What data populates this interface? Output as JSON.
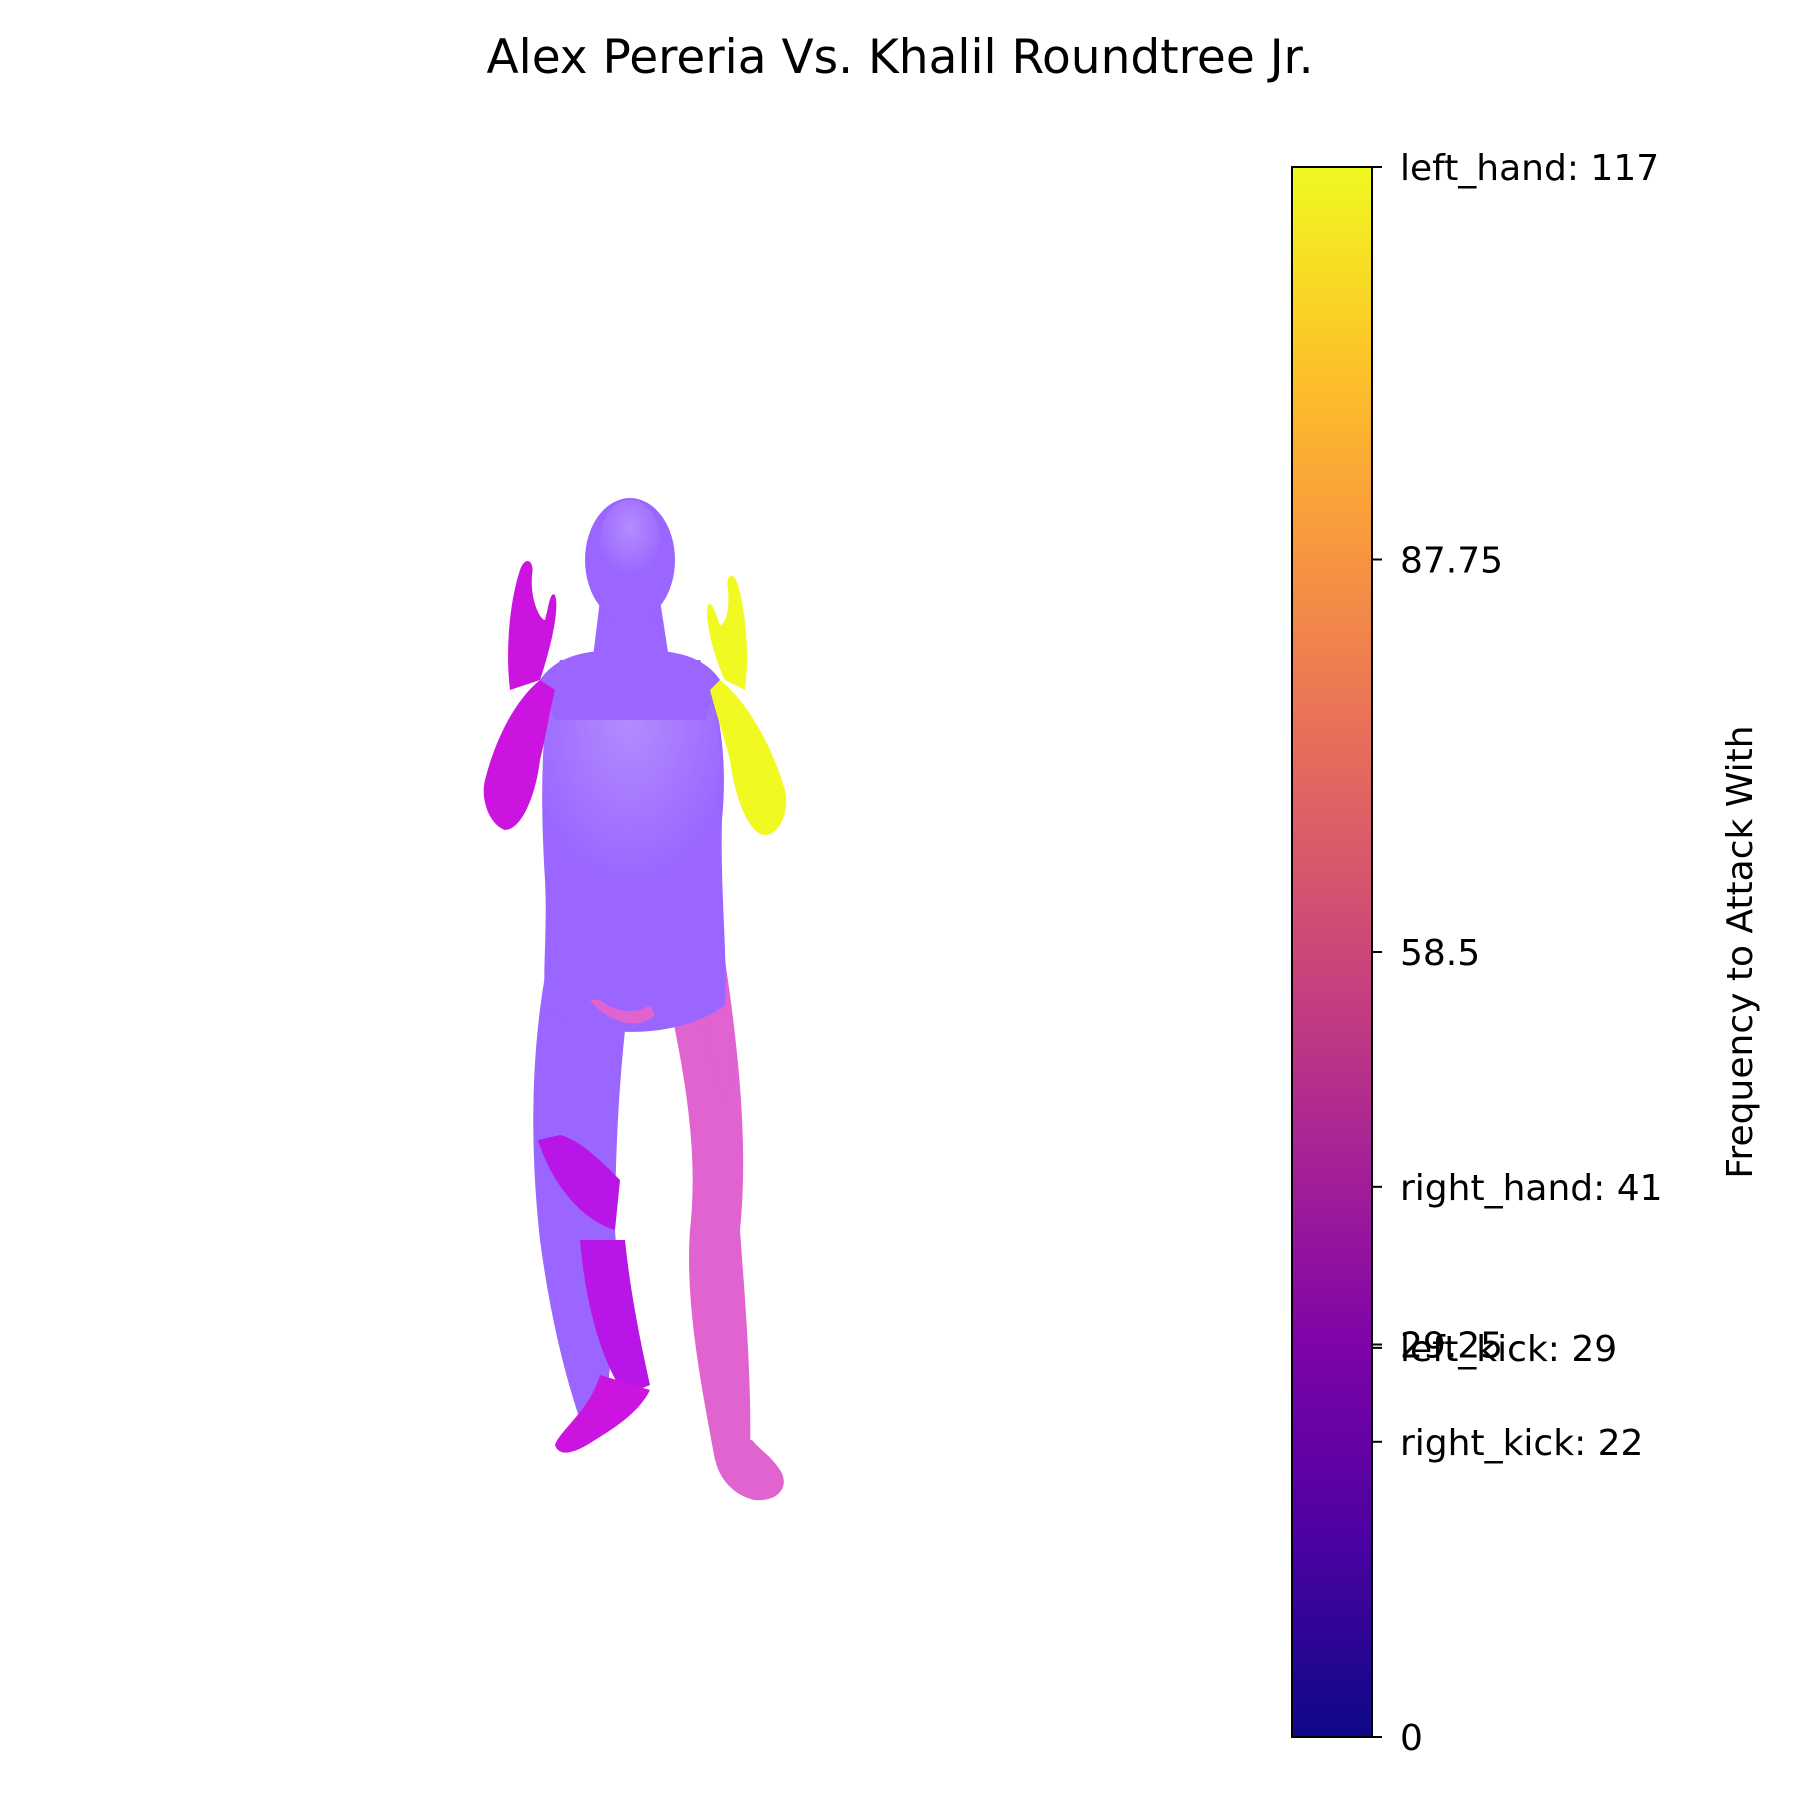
{
  "title": "Alex Pereria Vs. Khalil Roundtree Jr.",
  "chart_data": {
    "type": "heatmap",
    "title": "Alex Pereria Vs. Khalil Roundtree Jr.",
    "colormap": "plasma",
    "colorbar": {
      "label": "Frequency to Attack With",
      "range": [
        0,
        117
      ],
      "ticks": [
        {
          "value": 0,
          "label": "0"
        },
        {
          "value": 22,
          "label": "right_kick: 22"
        },
        {
          "value": 29,
          "label": "left_kick: 29"
        },
        {
          "value": 29.25,
          "label": "29.25"
        },
        {
          "value": 41,
          "label": "right_hand: 41"
        },
        {
          "value": 58.5,
          "label": "58.5"
        },
        {
          "value": 87.75,
          "label": "87.75"
        },
        {
          "value": 117,
          "label": "left_hand: 117"
        }
      ]
    },
    "body_parts": [
      {
        "name": "left_hand",
        "value": 117
      },
      {
        "name": "right_hand",
        "value": 41
      },
      {
        "name": "left_kick",
        "value": 29
      },
      {
        "name": "right_kick",
        "value": 22
      }
    ]
  },
  "colors": {
    "body_base": "#9a66ff",
    "left_hand": "#f0f921",
    "right_hand": "#cc14e0",
    "left_kick": "#e063d0",
    "right_kick": "#b716e6"
  }
}
